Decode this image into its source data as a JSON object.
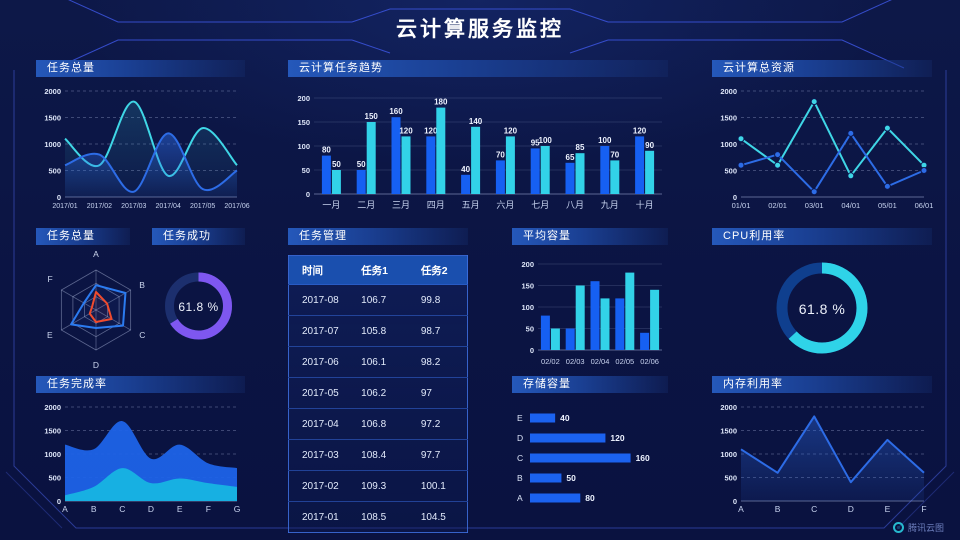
{
  "header": {
    "title": "云计算服务监控"
  },
  "watermark": {
    "label": "腾讯云图"
  },
  "panels": {
    "tasks_total": {
      "title": "任务总量"
    },
    "task_trend": {
      "title": "云计算任务趋势"
    },
    "total_resources": {
      "title": "云计算总资源"
    },
    "tasks_radar": {
      "title": "任务总量"
    },
    "task_success": {
      "title": "任务成功",
      "value_label": "61.8 %"
    },
    "task_management": {
      "title": "任务管理",
      "table": {
        "headers": [
          "时间",
          "任务1",
          "任务2"
        ],
        "rows": [
          [
            "2017-08",
            "106.7",
            "99.8"
          ],
          [
            "2017-07",
            "105.8",
            "98.7"
          ],
          [
            "2017-06",
            "106.1",
            "98.2"
          ],
          [
            "2017-05",
            "106.2",
            "97"
          ],
          [
            "2017-04",
            "106.8",
            "97.2"
          ],
          [
            "2017-03",
            "108.4",
            "97.7"
          ],
          [
            "2017-02",
            "109.3",
            "100.1"
          ],
          [
            "2017-01",
            "108.5",
            "104.5"
          ]
        ]
      }
    },
    "avg_capacity": {
      "title": "平均容量"
    },
    "cpu_usage": {
      "title": "CPU利用率",
      "value_label": "61.8 %"
    },
    "completion_rate": {
      "title": "任务完成率"
    },
    "storage": {
      "title": "存储容量"
    },
    "memory": {
      "title": "内存利用率"
    }
  },
  "chart_data": [
    {
      "id": "tasks_total",
      "type": "line",
      "title": "任务总量",
      "x": [
        "2017/01",
        "2017/02",
        "2017/03",
        "2017/04",
        "2017/05",
        "2017/06"
      ],
      "ylim": [
        0,
        2000
      ],
      "yticks": [
        0,
        500,
        1000,
        1500,
        2000
      ],
      "grid": "dash",
      "xfs": 7,
      "series": [
        {
          "name": "cyan-line",
          "color": "#3fd6e6",
          "smooth": true,
          "fill": true,
          "fillTop": 0.16,
          "fillBottom": 0.02,
          "values": [
            1100,
            600,
            1800,
            400,
            1300,
            600
          ]
        },
        {
          "name": "blue-line",
          "color": "#2d6ce6",
          "smooth": true,
          "fill": true,
          "fillTop": 0.5,
          "fillBottom": 0.06,
          "values": [
            600,
            800,
            100,
            1200,
            150,
            500
          ]
        }
      ]
    },
    {
      "id": "task_trend",
      "type": "bar",
      "title": "云计算任务趋势",
      "x": [
        "一月",
        "二月",
        "三月",
        "四月",
        "五月",
        "六月",
        "七月",
        "八月",
        "九月",
        "十月"
      ],
      "ylim": [
        0,
        200
      ],
      "yticks": [
        0,
        50,
        100,
        150,
        200
      ],
      "grid": "solid",
      "labels": true,
      "xfs": 9,
      "series": [
        {
          "name": "任务1",
          "color": "#1660f2",
          "values": [
            80,
            50,
            160,
            120,
            40,
            70,
            95,
            65,
            100,
            120
          ]
        },
        {
          "name": "任务2",
          "color": "#32d2e8",
          "values": [
            50,
            150,
            120,
            180,
            140,
            120,
            100,
            85,
            70,
            90
          ]
        }
      ]
    },
    {
      "id": "total_resources",
      "type": "line",
      "title": "云计算总资源",
      "x": [
        "01/01",
        "02/01",
        "03/01",
        "04/01",
        "05/01",
        "06/01"
      ],
      "ylim": [
        0,
        2000
      ],
      "yticks": [
        0,
        500,
        1000,
        1500,
        2000
      ],
      "grid": "dash",
      "xfs": 7.5,
      "series": [
        {
          "name": "cyan-line",
          "color": "#3fd6e6",
          "markers": true,
          "values": [
            1100,
            600,
            1800,
            400,
            1300,
            600
          ]
        },
        {
          "name": "blue-line",
          "color": "#2d6ce6",
          "markers": true,
          "values": [
            600,
            800,
            100,
            1200,
            200,
            500
          ]
        }
      ]
    },
    {
      "id": "tasks_radar",
      "type": "radar",
      "title": "任务总量",
      "axes": [
        "A",
        "B",
        "C",
        "D",
        "E",
        "F"
      ],
      "max": 100,
      "series": [
        {
          "name": "blue-polygon",
          "color": "#2b7bf0",
          "values": [
            62,
            85,
            78,
            45,
            72,
            35
          ]
        },
        {
          "name": "red-polygon",
          "color": "#ef4b2e",
          "values": [
            45,
            32,
            45,
            30,
            18,
            12
          ]
        }
      ]
    },
    {
      "id": "task_success_gauge",
      "type": "donut",
      "title": "任务成功",
      "value": 61.8,
      "arc_pct": 66,
      "color": "#7e57f0",
      "track": "#1c2f6e",
      "r": 29,
      "sw": 9
    },
    {
      "id": "avg_capacity",
      "type": "bar",
      "title": "平均容量",
      "x": [
        "02/02",
        "02/03",
        "02/04",
        "02/05",
        "02/06"
      ],
      "ylim": [
        0,
        200
      ],
      "yticks": [
        0,
        50,
        100,
        150,
        200
      ],
      "grid": "solid",
      "labels": false,
      "xfs": 7.5,
      "series": [
        {
          "name": "blue-bars",
          "color": "#1660f2",
          "values": [
            80,
            50,
            160,
            120,
            40
          ]
        },
        {
          "name": "cyan-bars",
          "color": "#32d2e8",
          "values": [
            50,
            150,
            120,
            180,
            140
          ]
        }
      ]
    },
    {
      "id": "cpu_gauge",
      "type": "donut",
      "title": "CPU利用率",
      "value": 61.8,
      "arc_pct": 63,
      "color": "#2fd3e8",
      "track": "#0f3f8e",
      "r": 40,
      "sw": 11
    },
    {
      "id": "completion_rate",
      "type": "line",
      "title": "任务完成率",
      "x": [
        "A",
        "B",
        "C",
        "D",
        "E",
        "F",
        "G"
      ],
      "ylim": [
        0,
        2000
      ],
      "yticks": [
        0,
        500,
        1000,
        1500,
        2000
      ],
      "grid": "dash",
      "xfs": 8.5,
      "series": [
        {
          "name": "blue-area-total",
          "color": "#1e63e8",
          "smooth": true,
          "fill": true,
          "solid": true,
          "opacity": 0.95,
          "stroke": false,
          "values": [
            1200,
            1100,
            1700,
            900,
            1200,
            800,
            700
          ]
        },
        {
          "name": "cyan-area-bottom",
          "color": "#17b0e2",
          "smooth": true,
          "fill": true,
          "solid": true,
          "opacity": 1,
          "stroke": false,
          "values": [
            120,
            300,
            700,
            380,
            480,
            380,
            300
          ]
        }
      ]
    },
    {
      "id": "storage",
      "type": "hbar",
      "title": "存储容量",
      "categories": [
        "E",
        "D",
        "C",
        "B",
        "A"
      ],
      "values": [
        40,
        120,
        160,
        50,
        80
      ],
      "xmax": 175,
      "color": "#1b62f0",
      "labels": true
    },
    {
      "id": "memory",
      "type": "line",
      "title": "内存利用率",
      "x": [
        "A",
        "B",
        "C",
        "D",
        "E",
        "F"
      ],
      "ylim": [
        0,
        2000
      ],
      "yticks": [
        0,
        500,
        1000,
        1500,
        2000
      ],
      "grid": "dash",
      "xfs": 8.5,
      "series": [
        {
          "name": "blue-line",
          "color": "#2d6ce6",
          "fill": true,
          "fillTop": 0.4,
          "fillBottom": 0.08,
          "values": [
            1100,
            600,
            1800,
            400,
            1300,
            600
          ]
        }
      ]
    }
  ]
}
